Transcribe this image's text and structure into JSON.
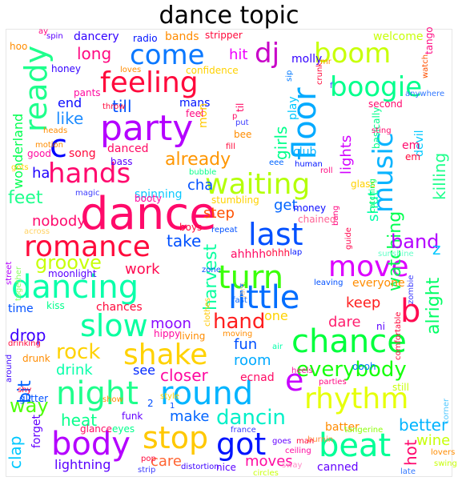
{
  "title": "dance topic",
  "words": [
    {
      "text": "dance",
      "color": "#ff0a6a"
    },
    {
      "text": "party",
      "color": "#b400ff"
    },
    {
      "text": "feeling",
      "color": "#ff0a3c"
    },
    {
      "text": "come",
      "color": "#0a78ff"
    },
    {
      "text": "boom",
      "color": "#c8ff0a"
    },
    {
      "text": "dj",
      "color": "#c800c8"
    },
    {
      "text": "ready",
      "color": "#1eff8c"
    },
    {
      "text": "floor",
      "color": "#00aaff"
    },
    {
      "text": "boogie",
      "color": "#00ff8c"
    },
    {
      "text": "c",
      "color": "#0000ff"
    },
    {
      "text": "hands",
      "color": "#ff0a6e"
    },
    {
      "text": "waiting",
      "color": "#b4ff0a"
    },
    {
      "text": "music",
      "color": "#0ab4ff"
    },
    {
      "text": "romance",
      "color": "#ff0a3c"
    },
    {
      "text": "last",
      "color": "#0050ff"
    },
    {
      "text": "move",
      "color": "#dc00ff"
    },
    {
      "text": "turn",
      "color": "#3cff0a"
    },
    {
      "text": "dancing",
      "color": "#0affaa"
    },
    {
      "text": "little",
      "color": "#006eff"
    },
    {
      "text": "slow",
      "color": "#0affa0"
    },
    {
      "text": "chance",
      "color": "#00ff3c"
    },
    {
      "text": "shake",
      "color": "#ffd200"
    },
    {
      "text": "night",
      "color": "#1eff8c"
    },
    {
      "text": "round",
      "color": "#00b4ff"
    },
    {
      "text": "rhythm",
      "color": "#e6ff0a"
    },
    {
      "text": "e",
      "color": "#c800ff"
    },
    {
      "text": "b",
      "color": "#ff0a50"
    },
    {
      "text": "body",
      "color": "#b400ff"
    },
    {
      "text": "stop",
      "color": "#ffc800"
    },
    {
      "text": "got",
      "color": "#0014ff"
    },
    {
      "text": "beat",
      "color": "#00ff96"
    },
    {
      "text": "hand",
      "color": "#ff1e1e"
    },
    {
      "text": "everybody",
      "color": "#14ff0a"
    },
    {
      "text": "way",
      "color": "#50ff0a"
    },
    {
      "text": "rock",
      "color": "#ffd200"
    },
    {
      "text": "dancin",
      "color": "#00f0c8"
    },
    {
      "text": "groove",
      "color": "#c8ff0a"
    },
    {
      "text": "long",
      "color": "#ff0a82"
    },
    {
      "text": "hit",
      "color": "#f000ff"
    },
    {
      "text": "girls",
      "color": "#00ff8c"
    },
    {
      "text": "watching",
      "color": "#00ff50"
    },
    {
      "text": "band",
      "color": "#b400ff"
    },
    {
      "text": "feet",
      "color": "#1eff8c"
    },
    {
      "text": "till",
      "color": "#0050ff"
    },
    {
      "text": "like",
      "color": "#1e8cff"
    },
    {
      "text": "already",
      "color": "#ff9600"
    },
    {
      "text": "cha",
      "color": "#0050ff"
    },
    {
      "text": "get",
      "color": "#0064ff"
    },
    {
      "text": "step",
      "color": "#ff5000"
    },
    {
      "text": "take",
      "color": "#0050ff"
    },
    {
      "text": "work",
      "color": "#ff0a50"
    },
    {
      "text": "harvest",
      "color": "#0affa0"
    },
    {
      "text": "lights",
      "color": "#d200ff"
    },
    {
      "text": "shut",
      "color": "#00ffaa"
    },
    {
      "text": "z",
      "color": "#00c8ff"
    },
    {
      "text": "alright",
      "color": "#00ff64"
    },
    {
      "text": "killing",
      "color": "#1eff8c"
    },
    {
      "text": "keep",
      "color": "#ff1e1e"
    },
    {
      "text": "dare",
      "color": "#ff1e6e"
    },
    {
      "text": "moon",
      "color": "#8c0aff"
    },
    {
      "text": "fun",
      "color": "#0050ff"
    },
    {
      "text": "room",
      "color": "#00aaff"
    },
    {
      "text": "bit",
      "color": "#0064ff"
    },
    {
      "text": "drop",
      "color": "#3c00ff"
    },
    {
      "text": "drink",
      "color": "#0affaa"
    },
    {
      "text": "closer",
      "color": "#ff0aa0"
    },
    {
      "text": "see",
      "color": "#0028ff"
    },
    {
      "text": "heat",
      "color": "#0aff8c"
    },
    {
      "text": "make",
      "color": "#0064ff"
    },
    {
      "text": "clap",
      "color": "#00c8ff"
    },
    {
      "text": "care",
      "color": "#ff6432"
    },
    {
      "text": "moves",
      "color": "#ff0aa0"
    },
    {
      "text": "better",
      "color": "#00b4ff"
    },
    {
      "text": "hot",
      "color": "#ff0a6e"
    },
    {
      "text": "wine",
      "color": "#c8ff0a"
    },
    {
      "text": "lightning",
      "color": "#5a00ff"
    },
    {
      "text": "canned",
      "color": "#6400ff"
    },
    {
      "text": "everyone",
      "color": "#ff8c00"
    },
    {
      "text": "nobody",
      "color": "#ff0a6e"
    },
    {
      "text": "ha",
      "color": "#1e00ff"
    },
    {
      "text": "end",
      "color": "#0a0aff"
    },
    {
      "text": "wonderland",
      "color": "#00ff50"
    },
    {
      "text": "song",
      "color": "#ff0a3c"
    },
    {
      "text": "danced",
      "color": "#ff0a64"
    },
    {
      "text": "spinning",
      "color": "#0ac8ff"
    },
    {
      "text": "money",
      "color": "#0a0aff"
    },
    {
      "text": "ohhh",
      "color": "#ff0a3c"
    },
    {
      "text": "club",
      "color": "#0ab4ff"
    },
    {
      "text": "basically",
      "color": "#00ff8c"
    },
    {
      "text": "play",
      "color": "#00c8ff"
    },
    {
      "text": "sip",
      "color": "#0078ff"
    },
    {
      "text": "mans",
      "color": "#0014ff"
    },
    {
      "text": "mon",
      "color": "#ffc800"
    },
    {
      "text": "til",
      "color": "#ff0a64"
    },
    {
      "text": "pants",
      "color": "#ff0aa0"
    },
    {
      "text": "molly",
      "color": "#3200ff"
    },
    {
      "text": "welcome",
      "color": "#c8ff0a"
    },
    {
      "text": "bands",
      "color": "#ff8c00"
    },
    {
      "text": "stripper",
      "color": "#ff0a3c"
    },
    {
      "text": "dancery",
      "color": "#3200ff"
    },
    {
      "text": "radio",
      "color": "#0014ff"
    },
    {
      "text": "spin",
      "color": "#5a00ff"
    },
    {
      "text": "tango",
      "color": "#ff0a82"
    },
    {
      "text": "honey",
      "color": "#3200ff"
    },
    {
      "text": "loves",
      "color": "#ff8c00"
    },
    {
      "text": "confidence",
      "color": "#ffd200"
    },
    {
      "text": "second",
      "color": "#ff0a6e"
    },
    {
      "text": "anywhere",
      "color": "#3278ff"
    },
    {
      "text": "watch",
      "color": "#ff5000"
    },
    {
      "text": "sting",
      "color": "#ff0a6e"
    },
    {
      "text": "devil",
      "color": "#00c8ff"
    },
    {
      "text": "em",
      "color": "#ff0a6e"
    },
    {
      "text": "human",
      "color": "#0014ff"
    },
    {
      "text": "roll",
      "color": "#ff0a82"
    },
    {
      "text": "glass",
      "color": "#ffd200"
    },
    {
      "text": "catching",
      "color": "#00ff64"
    },
    {
      "text": "bang",
      "color": "#ff0a82"
    },
    {
      "text": "guide",
      "color": "#ff0a50"
    },
    {
      "text": "sunshine",
      "color": "#64ffc8"
    },
    {
      "text": "zombie",
      "color": "#3c3cff"
    },
    {
      "text": "leaving",
      "color": "#0050ff"
    },
    {
      "text": "ni",
      "color": "#5a00ff"
    },
    {
      "text": "comfortable",
      "color": "#ff0a3c"
    },
    {
      "text": "oooh",
      "color": "#0078ff"
    },
    {
      "text": "still",
      "color": "#c8ff0a"
    },
    {
      "text": "corner",
      "color": "#50c8ff"
    },
    {
      "text": "parties",
      "color": "#ff0a82"
    },
    {
      "text": "heels",
      "color": "#ff0aa0"
    },
    {
      "text": "ecnad",
      "color": "#ff0a64"
    },
    {
      "text": "batter",
      "color": "#ff8c00"
    },
    {
      "text": "tangerine",
      "color": "#8cff0a"
    },
    {
      "text": "lovers",
      "color": "#ff8c00"
    },
    {
      "text": "swing",
      "color": "#c8ff0a"
    },
    {
      "text": "late",
      "color": "#3278ff"
    },
    {
      "text": "sway",
      "color": "#ff8cc8"
    },
    {
      "text": "burnin",
      "color": "#ff8c3c"
    },
    {
      "text": "goes",
      "color": "#6400ff"
    },
    {
      "text": "man",
      "color": "#ff0a3c"
    },
    {
      "text": "ceiling",
      "color": "#ff0aa0"
    },
    {
      "text": "france",
      "color": "#3c3cff"
    },
    {
      "text": "circles",
      "color": "#c8ff0a"
    },
    {
      "text": "distortion",
      "color": "#3c00ff"
    },
    {
      "text": "nice",
      "color": "#5a00ff"
    },
    {
      "text": "pop",
      "color": "#ff0a3c"
    },
    {
      "text": "strip",
      "color": "#3c3cff"
    },
    {
      "text": "eyes",
      "color": "#00ff8c"
    },
    {
      "text": "glance",
      "color": "#ff0a64"
    },
    {
      "text": "funk",
      "color": "#6400ff"
    },
    {
      "text": "forget",
      "color": "#6400ff"
    },
    {
      "text": "show",
      "color": "#ff8c00"
    },
    {
      "text": "glitter",
      "color": "#0050ff"
    },
    {
      "text": "shy",
      "color": "#ff0a3c"
    },
    {
      "text": "around",
      "color": "#3c00ff"
    },
    {
      "text": "drinking",
      "color": "#ff0a3c"
    },
    {
      "text": "drunk",
      "color": "#ff8c00"
    },
    {
      "text": "kiss",
      "color": "#00ff8c"
    },
    {
      "text": "time",
      "color": "#0050ff"
    },
    {
      "text": "moonlight",
      "color": "#5a00ff"
    },
    {
      "text": "street",
      "color": "#b400ff"
    },
    {
      "text": "together",
      "color": "#8cff64"
    },
    {
      "text": "across",
      "color": "#ffd264"
    },
    {
      "text": "chances",
      "color": "#ff0a3c"
    },
    {
      "text": "hippy",
      "color": "#ff0aa0"
    },
    {
      "text": "living",
      "color": "#ff8c00"
    },
    {
      "text": "moving",
      "color": "#ff8c00"
    },
    {
      "text": "one",
      "color": "#ffd200"
    },
    {
      "text": "air",
      "color": "#00ffaa"
    },
    {
      "text": "clothes",
      "color": "#ffc800"
    },
    {
      "text": "fast",
      "color": "#0064ff"
    },
    {
      "text": "jam",
      "color": "#ffd2a0"
    },
    {
      "text": "zone",
      "color": "#0050ff"
    },
    {
      "text": "ahhhh",
      "color": "#ff0a64"
    },
    {
      "text": "lap",
      "color": "#0014ff"
    },
    {
      "text": "repeat",
      "color": "#0050ff"
    },
    {
      "text": "boys",
      "color": "#ff0a3c"
    },
    {
      "text": "chained",
      "color": "#ff6496"
    },
    {
      "text": "stumbling",
      "color": "#ffd200"
    },
    {
      "text": "booty",
      "color": "#ff0aa0"
    },
    {
      "text": "magic",
      "color": "#3c3cff"
    },
    {
      "text": "bubble",
      "color": "#0aff8c"
    },
    {
      "text": "bass",
      "color": "#5a00ff"
    },
    {
      "text": "eee",
      "color": "#0064ff"
    },
    {
      "text": "good",
      "color": "#ff0aa0"
    },
    {
      "text": "heads",
      "color": "#ff8c00"
    },
    {
      "text": "motion",
      "color": "#ff8c00"
    },
    {
      "text": "gots",
      "color": "#ffd200"
    },
    {
      "text": "throw",
      "color": "#ff0a3c"
    },
    {
      "text": "feel",
      "color": "#ff0a82"
    },
    {
      "text": "put",
      "color": "#3c3cff"
    },
    {
      "text": "fill",
      "color": "#ff0a3c"
    },
    {
      "text": "bee",
      "color": "#ff8c00"
    },
    {
      "text": "p",
      "color": "#ff0a64"
    },
    {
      "text": "hoo",
      "color": "#ff8c00"
    },
    {
      "text": "ay",
      "color": "#ff0a82"
    },
    {
      "text": "crunk",
      "color": "#ff0a3c"
    },
    {
      "text": "mr",
      "color": "#ff8c00"
    },
    {
      "text": "f",
      "color": "#3c3cff"
    },
    {
      "text": "2",
      "color": "#0050ff"
    },
    {
      "text": "1",
      "color": "#0050ff"
    },
    {
      "text": "style",
      "color": "#ffd200"
    },
    {
      "text": "em",
      "color": "#ff0a3c"
    }
  ]
}
